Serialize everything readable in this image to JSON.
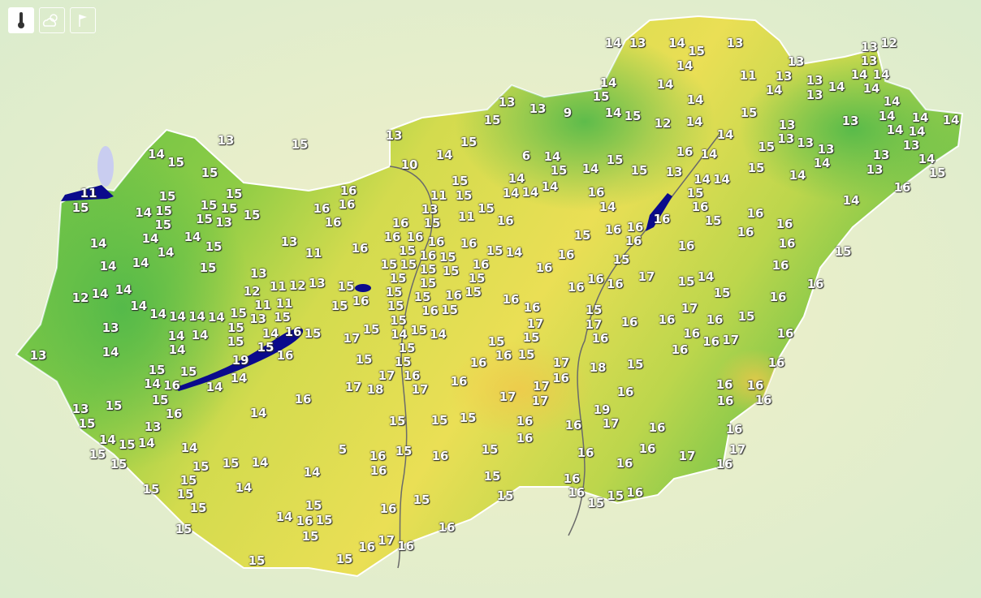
{
  "controls": [
    {
      "icon": "thermometer-icon",
      "active": true
    },
    {
      "icon": "cloud-sun-icon",
      "active": false
    },
    {
      "icon": "flag-icon",
      "active": false
    }
  ],
  "colors": {
    "cool": "#4fb84a",
    "warm": "#eadf55",
    "lake": "#0a0a8c",
    "border": "#666666"
  },
  "temperature_labels": [
    12,
    14,
    13,
    14,
    13,
    15,
    14,
    13,
    13,
    13,
    13,
    14,
    14,
    13,
    13,
    14,
    14,
    11,
    14,
    14,
    14,
    15,
    14,
    14,
    14,
    14,
    14,
    14,
    14,
    13,
    13,
    13,
    13,
    13,
    13,
    14,
    13,
    13,
    14,
    15,
    16,
    15,
    15,
    14,
    14,
    12,
    13,
    13,
    9,
    14,
    15,
    15,
    15,
    13,
    14,
    10,
    6,
    14,
    15,
    15,
    15,
    14,
    13,
    16,
    14,
    15,
    14,
    14,
    14,
    14,
    15,
    15,
    14,
    14,
    14,
    14,
    16,
    14,
    15,
    16,
    15,
    16,
    16,
    16,
    16,
    15,
    16,
    16,
    16,
    15,
    15,
    14,
    15,
    16,
    16,
    16,
    16,
    16,
    15,
    16,
    15,
    17,
    16,
    16,
    16,
    15,
    17,
    16,
    16,
    16,
    17,
    16,
    16,
    16,
    17,
    16,
    16,
    16,
    15,
    18,
    17,
    16,
    16,
    16,
    16,
    16,
    16,
    16,
    17,
    16,
    17,
    16,
    16,
    16,
    19,
    17,
    16,
    16,
    16,
    16,
    16,
    15,
    15,
    15,
    15,
    15,
    15,
    15,
    15,
    15,
    16,
    15,
    16,
    16,
    17,
    16,
    16,
    15,
    16,
    16,
    5,
    14,
    15,
    16,
    15,
    14,
    15,
    15,
    15,
    15,
    15,
    15,
    15,
    14,
    15,
    15,
    14,
    14,
    15,
    15,
    14,
    15,
    14,
    13,
    15,
    13,
    15,
    15,
    14,
    16,
    15,
    16,
    15,
    14,
    14,
    14,
    16,
    16,
    19,
    15,
    16,
    15,
    17,
    15,
    15,
    18,
    17,
    17,
    17,
    16,
    17,
    17,
    17,
    16,
    16,
    16,
    16,
    15,
    15,
    17,
    15,
    16,
    16,
    15,
    16,
    15,
    16,
    15,
    15,
    16,
    16,
    15,
    14,
    16,
    16,
    15,
    11,
    11,
    13,
    15,
    16,
    16,
    16,
    16,
    15,
    15,
    15,
    15,
    15,
    15,
    16,
    15,
    15,
    15,
    15,
    15,
    14,
    15,
    14,
    15,
    16,
    15,
    16,
    15,
    16,
    15,
    13,
    11,
    13,
    12,
    11,
    13,
    12,
    15,
    13,
    11,
    11,
    15,
    14,
    15,
    15,
    14,
    14,
    14,
    14,
    14,
    14,
    14,
    14,
    14,
    13,
    14,
    13,
    12,
    14,
    14,
    14,
    14,
    14,
    14,
    14,
    15,
    15,
    14,
    15,
    15,
    15,
    15,
    15,
    13,
    15,
    15,
    15,
    15,
    15,
    14,
    13,
    15,
    11,
    15,
    16,
    16,
    16,
    16
  ]
}
